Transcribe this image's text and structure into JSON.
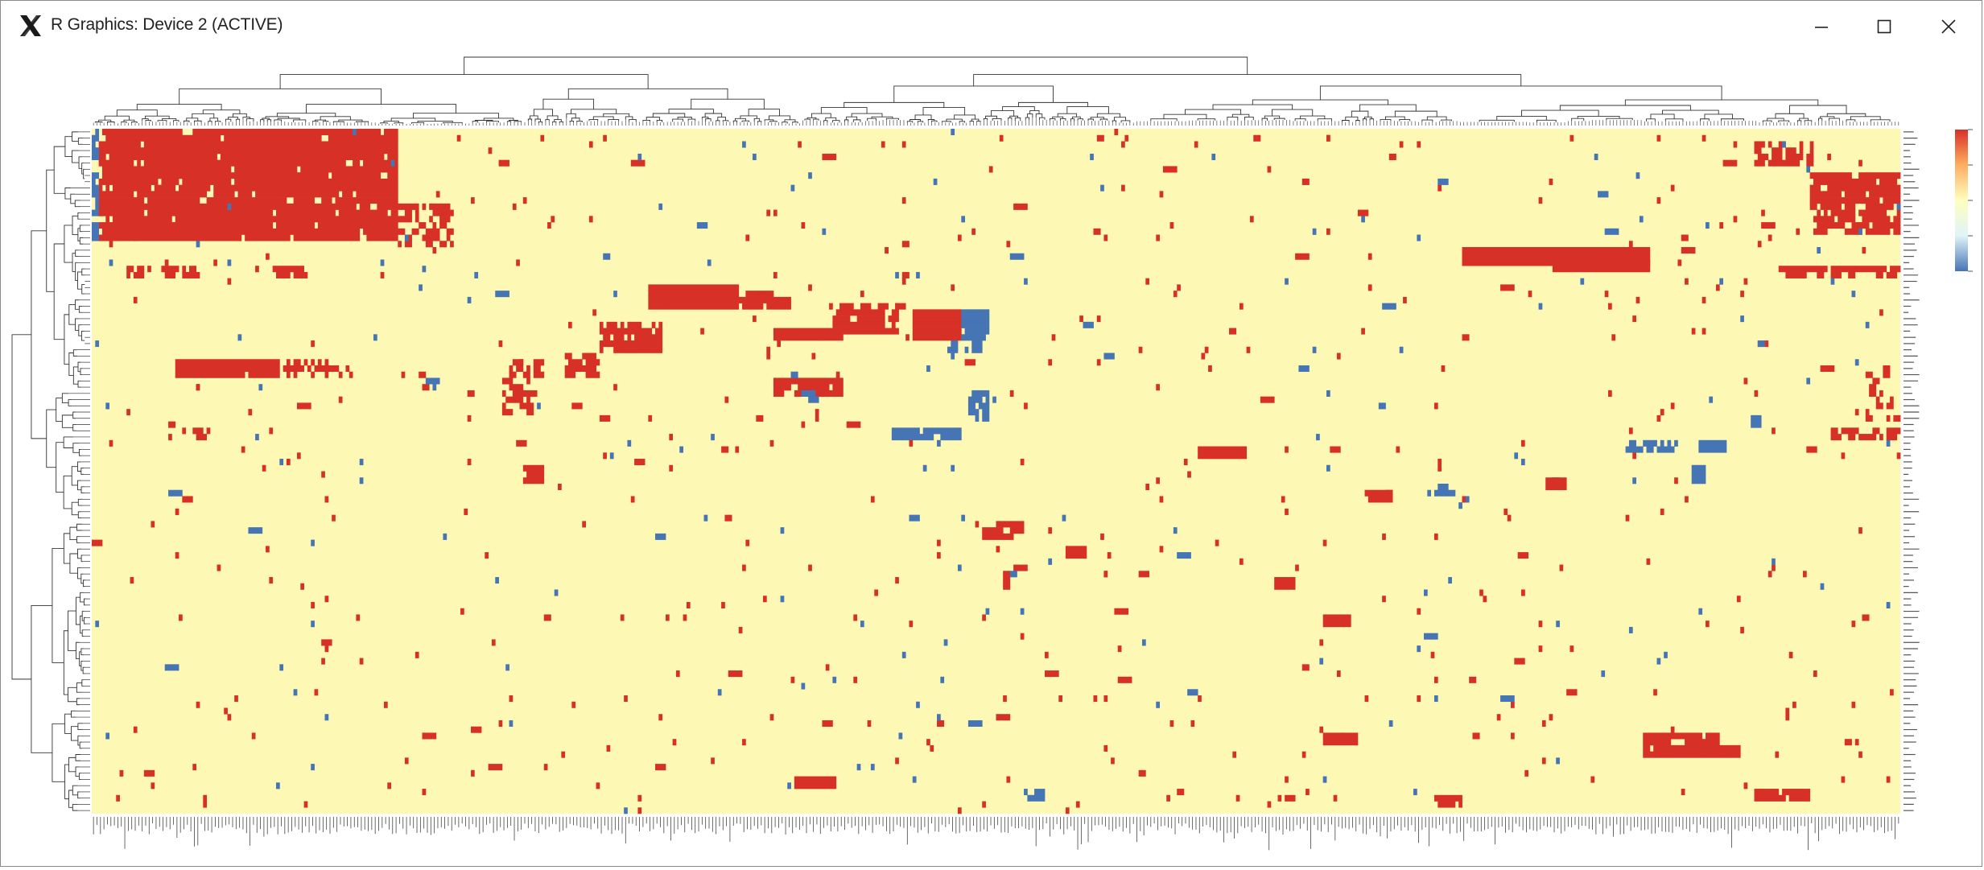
{
  "window": {
    "title": "R Graphics: Device 2 (ACTIVE)",
    "app_icon": "x11-logo-icon",
    "controls": {
      "minimize_icon": "minimize-icon",
      "maximize_icon": "maximize-icon",
      "close_icon": "close-icon"
    }
  },
  "chart_data": {
    "type": "heatmap",
    "title": "",
    "xlabel": "",
    "ylabel": "",
    "row_dendrogram": true,
    "column_dendrogram": true,
    "legend_placement": "right",
    "colors": {
      "low": "#4575b4",
      "mid_low": "#e0f3f8",
      "mid": "#ffffbf",
      "mid_high": "#fdae61",
      "high": "#d73027",
      "background": "#fdf8b4"
    },
    "n_rows": 110,
    "n_cols": 520,
    "blocks": [
      {
        "r0": 0,
        "r1": 18,
        "c0": 2,
        "c1": 88,
        "v": 1,
        "fill": 0.82
      },
      {
        "r0": 0,
        "r1": 18,
        "c0": 0,
        "c1": 2,
        "v": -1,
        "fill": 0.7
      },
      {
        "r0": 12,
        "r1": 19,
        "c0": 88,
        "c1": 104,
        "v": 1,
        "fill": 0.35
      },
      {
        "r0": 2,
        "r1": 6,
        "c0": 478,
        "c1": 495,
        "v": 1,
        "fill": 0.4
      },
      {
        "r0": 7,
        "r1": 17,
        "c0": 494,
        "c1": 520,
        "v": 1,
        "fill": 0.65
      },
      {
        "r0": 19,
        "r1": 22,
        "c0": 394,
        "c1": 448,
        "v": 1,
        "fill": 0.95
      },
      {
        "r0": 21,
        "r1": 23,
        "c0": 420,
        "c1": 448,
        "v": 1,
        "fill": 0.95
      },
      {
        "r0": 22,
        "r1": 24,
        "c0": 484,
        "c1": 520,
        "v": 1,
        "fill": 0.6
      },
      {
        "r0": 22,
        "r1": 24,
        "c0": 10,
        "c1": 32,
        "v": 1,
        "fill": 0.45
      },
      {
        "r0": 22,
        "r1": 24,
        "c0": 52,
        "c1": 62,
        "v": 1,
        "fill": 0.55
      },
      {
        "r0": 25,
        "r1": 29,
        "c0": 160,
        "c1": 186,
        "v": 1,
        "fill": 0.9
      },
      {
        "r0": 26,
        "r1": 29,
        "c0": 186,
        "c1": 202,
        "v": 1,
        "fill": 0.6
      },
      {
        "r0": 28,
        "r1": 33,
        "c0": 212,
        "c1": 232,
        "v": 1,
        "fill": 0.6
      },
      {
        "r0": 29,
        "r1": 34,
        "c0": 236,
        "c1": 250,
        "v": 1,
        "fill": 0.85
      },
      {
        "r0": 29,
        "r1": 34,
        "c0": 250,
        "c1": 258,
        "v": -1,
        "fill": 0.75
      },
      {
        "r0": 32,
        "r1": 34,
        "c0": 196,
        "c1": 216,
        "v": 1,
        "fill": 0.85
      },
      {
        "r0": 31,
        "r1": 36,
        "c0": 146,
        "c1": 164,
        "v": 1,
        "fill": 0.5
      },
      {
        "r0": 34,
        "r1": 36,
        "c0": 246,
        "c1": 256,
        "v": -1,
        "fill": 0.5
      },
      {
        "r0": 37,
        "r1": 40,
        "c0": 24,
        "c1": 54,
        "v": 1,
        "fill": 0.85
      },
      {
        "r0": 37,
        "r1": 40,
        "c0": 54,
        "c1": 74,
        "v": 1,
        "fill": 0.35
      },
      {
        "r0": 37,
        "r1": 40,
        "c0": 120,
        "c1": 130,
        "v": 1,
        "fill": 0.45
      },
      {
        "r0": 36,
        "r1": 40,
        "c0": 136,
        "c1": 146,
        "v": 1,
        "fill": 0.5
      },
      {
        "r0": 40,
        "r1": 43,
        "c0": 196,
        "c1": 216,
        "v": 1,
        "fill": 0.55
      },
      {
        "r0": 40,
        "r1": 46,
        "c0": 118,
        "c1": 128,
        "v": 1,
        "fill": 0.45
      },
      {
        "r0": 42,
        "r1": 47,
        "c0": 252,
        "c1": 258,
        "v": -1,
        "fill": 0.55
      },
      {
        "r0": 38,
        "r1": 49,
        "c0": 510,
        "c1": 520,
        "v": 1,
        "fill": 0.25
      },
      {
        "r0": 46,
        "r1": 48,
        "c0": 476,
        "c1": 480,
        "v": -1,
        "fill": 0.7
      },
      {
        "r0": 48,
        "r1": 50,
        "c0": 230,
        "c1": 250,
        "v": -1,
        "fill": 0.85
      },
      {
        "r0": 48,
        "r1": 50,
        "c0": 500,
        "c1": 520,
        "v": 1,
        "fill": 0.45
      },
      {
        "r0": 48,
        "r1": 50,
        "c0": 22,
        "c1": 34,
        "v": 1,
        "fill": 0.35
      },
      {
        "r0": 50,
        "r1": 52,
        "c0": 440,
        "c1": 456,
        "v": -1,
        "fill": 0.55
      },
      {
        "r0": 50,
        "r1": 52,
        "c0": 462,
        "c1": 470,
        "v": -1,
        "fill": 0.85
      },
      {
        "r0": 51,
        "r1": 53,
        "c0": 318,
        "c1": 332,
        "v": 1,
        "fill": 0.95
      },
      {
        "r0": 54,
        "r1": 57,
        "c0": 124,
        "c1": 130,
        "v": 1,
        "fill": 0.7
      },
      {
        "r0": 54,
        "r1": 57,
        "c0": 460,
        "c1": 464,
        "v": -1,
        "fill": 0.8
      },
      {
        "r0": 56,
        "r1": 58,
        "c0": 418,
        "c1": 424,
        "v": 1,
        "fill": 0.9
      },
      {
        "r0": 57,
        "r1": 59,
        "c0": 384,
        "c1": 392,
        "v": -1,
        "fill": 0.55
      },
      {
        "r0": 58,
        "r1": 60,
        "c0": 366,
        "c1": 374,
        "v": 1,
        "fill": 0.9
      },
      {
        "r0": 63,
        "r1": 66,
        "c0": 256,
        "c1": 268,
        "v": 1,
        "fill": 0.65
      },
      {
        "r0": 67,
        "r1": 69,
        "c0": 280,
        "c1": 286,
        "v": 1,
        "fill": 0.9
      },
      {
        "r0": 71,
        "r1": 74,
        "c0": 262,
        "c1": 264,
        "v": 1,
        "fill": 0.9
      },
      {
        "r0": 72,
        "r1": 74,
        "c0": 340,
        "c1": 346,
        "v": 1,
        "fill": 0.8
      },
      {
        "r0": 78,
        "r1": 80,
        "c0": 354,
        "c1": 362,
        "v": 1,
        "fill": 0.9
      },
      {
        "r0": 97,
        "r1": 99,
        "c0": 354,
        "c1": 364,
        "v": 1,
        "fill": 0.9
      },
      {
        "r0": 97,
        "r1": 101,
        "c0": 446,
        "c1": 468,
        "v": 1,
        "fill": 0.75
      },
      {
        "r0": 99,
        "r1": 101,
        "c0": 466,
        "c1": 474,
        "v": 1,
        "fill": 0.7
      },
      {
        "r0": 104,
        "r1": 106,
        "c0": 202,
        "c1": 214,
        "v": 1,
        "fill": 0.95
      },
      {
        "r0": 106,
        "r1": 108,
        "c0": 478,
        "c1": 494,
        "v": 1,
        "fill": 0.7
      },
      {
        "r0": 107,
        "r1": 109,
        "c0": 386,
        "c1": 394,
        "v": 1,
        "fill": 0.6
      },
      {
        "r0": 106,
        "r1": 108,
        "c0": 268,
        "c1": 274,
        "v": -1,
        "fill": 0.7
      }
    ],
    "scatter_density": {
      "red": 0.008,
      "blue": 0.003
    }
  }
}
